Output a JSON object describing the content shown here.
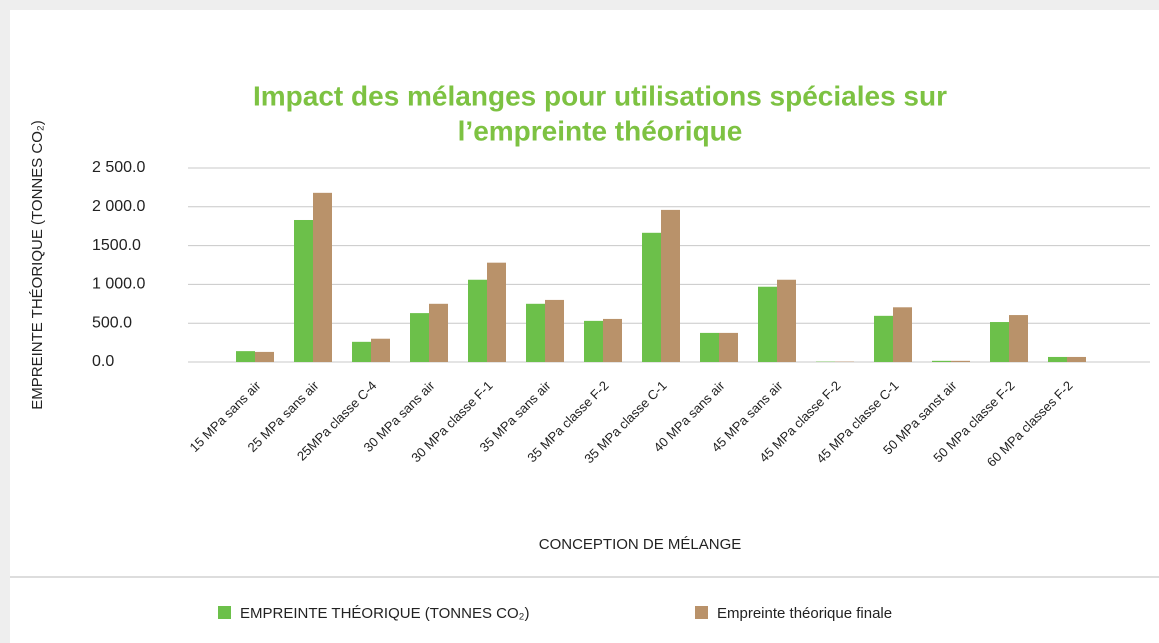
{
  "chart_data": {
    "type": "bar",
    "title": [
      "Impact des mélanges pour utilisations spéciales sur",
      "l’empreinte théorique"
    ],
    "y_label": "EMPREINTE THÉORIQUE (TONNES CO₂)",
    "x_label": "CONCEPTION DE MÉLANGE",
    "categories": [
      "15 MPa sans air",
      "25 MPa sans air",
      "25MPa classe C-4",
      "30 MPa sans air",
      "30 MPa classe F-1",
      "35 MPa sans air",
      "35 MPa classe F-2",
      "35 MPa classe C-1",
      "40 MPa sans air",
      "45 MPa sans air",
      "45 MPa classe F-2",
      "45 MPa classe C-1",
      "50 MPa sanst air",
      "50 MPa classe F-2",
      "60 MPa classes F-2"
    ],
    "series": [
      {
        "name": "EMPREINTE THÉORIQUE (TONNES CO₂)",
        "color": "#6cc04a",
        "values": [
          140,
          1830,
          260,
          630,
          1060,
          750,
          530,
          1665,
          375,
          970,
          5,
          595,
          15,
          515,
          65
        ]
      },
      {
        "name": "Empreinte théorique finale",
        "color": "#b9926a",
        "values": [
          130,
          2180,
          300,
          750,
          1280,
          800,
          555,
          1960,
          375,
          1060,
          5,
          705,
          15,
          605,
          65
        ]
      }
    ],
    "ylim": [
      0,
      2500
    ],
    "yticks": [
      {
        "value": 0,
        "label": "0.0"
      },
      {
        "value": 500,
        "label": "500.0"
      },
      {
        "value": 1000,
        "label": "1 000.0"
      },
      {
        "value": 1500,
        "label": "1500.0"
      },
      {
        "value": 2000,
        "label": "2 000.0"
      },
      {
        "value": 2500,
        "label": "2 500.0"
      }
    ],
    "grid": true,
    "legend": "bottom"
  }
}
